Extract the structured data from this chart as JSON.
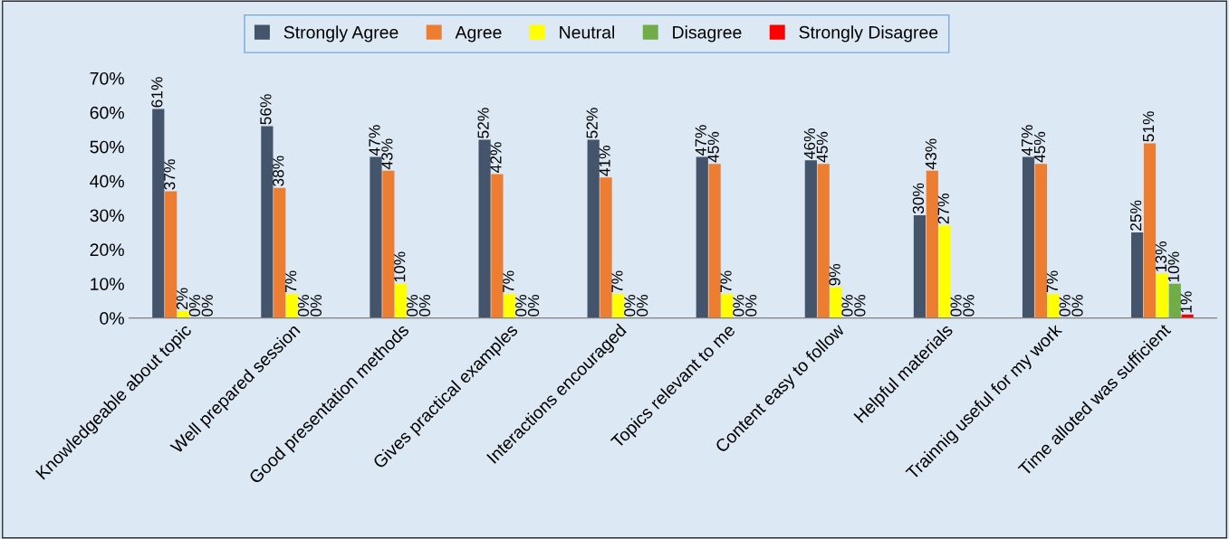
{
  "chart_data": {
    "type": "bar",
    "categories": [
      "Knowledgeable about topic",
      "Well prepared session",
      "Good presentation methods",
      "Gives practical examples",
      "Interactions encouraged",
      "Topics relevant to me",
      "Content easy to follow",
      "Helpful materials",
      "Trainnig useful for my work",
      "Time alloted was sufficient"
    ],
    "series": [
      {
        "name": "Strongly Agree",
        "color": "#44546a",
        "values": [
          61,
          56,
          47,
          52,
          52,
          47,
          46,
          30,
          47,
          25
        ]
      },
      {
        "name": "Agree",
        "color": "#ed7d31",
        "values": [
          37,
          38,
          43,
          42,
          41,
          45,
          45,
          43,
          45,
          51
        ]
      },
      {
        "name": "Neutral",
        "color": "#ffff00",
        "values": [
          2,
          7,
          10,
          7,
          7,
          7,
          9,
          27,
          7,
          13
        ]
      },
      {
        "name": "Disagree",
        "color": "#70ad47",
        "values": [
          0,
          0,
          0,
          0,
          0,
          0,
          0,
          0,
          0,
          10
        ]
      },
      {
        "name": "Strongly Disagree",
        "color": "#ff0000",
        "values": [
          0,
          0,
          0,
          0,
          0,
          0,
          0,
          0,
          0,
          1
        ]
      }
    ],
    "ylim": [
      0,
      70
    ],
    "yticks": [
      {
        "value": 0,
        "label": "0%"
      },
      {
        "value": 10,
        "label": "10%"
      },
      {
        "value": 20,
        "label": "20%"
      },
      {
        "value": 30,
        "label": "30%"
      },
      {
        "value": 40,
        "label": "40%"
      },
      {
        "value": 50,
        "label": "50%"
      },
      {
        "value": 60,
        "label": "60%"
      },
      {
        "value": 70,
        "label": "70%"
      }
    ],
    "value_labels": [
      [
        "61%",
        "56%",
        "47%",
        "52%",
        "52%",
        "47%",
        "46%",
        "30%",
        "47%",
        "25%"
      ],
      [
        "37%",
        "38%",
        "43%",
        "42%",
        "41%",
        "45%",
        "45%",
        "43%",
        "45%",
        "51%"
      ],
      [
        "2%",
        "7%",
        "10%",
        "7%",
        "7%",
        "7%",
        "9%",
        "27%",
        "7%",
        "13%"
      ],
      [
        "0%",
        "0%",
        "0%",
        "0%",
        "0%",
        "0%",
        "0%",
        "0%",
        "0%",
        "10%"
      ],
      [
        "0%",
        "0%",
        "0%",
        "0%",
        "0%",
        "0%",
        "0%",
        "0%",
        "0%",
        "1%"
      ]
    ],
    "grid": false,
    "legend": "top"
  }
}
